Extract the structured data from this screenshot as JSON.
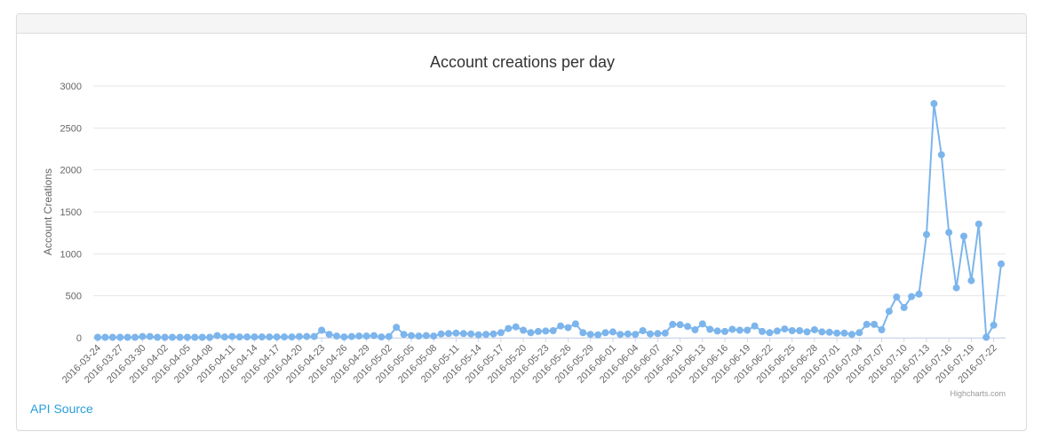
{
  "link": {
    "api_source": "API Source"
  },
  "credits": "Highcharts.com",
  "colors": {
    "series": "#7cb5ec",
    "grid": "#e6e6e6",
    "link": "#2a9fd6"
  },
  "chart_data": {
    "type": "line",
    "title": "Account creations per day",
    "xlabel": "",
    "ylabel": "Account Creations",
    "ylim": [
      0,
      3000
    ],
    "yticks": [
      0,
      500,
      1000,
      1500,
      2000,
      2500,
      3000
    ],
    "grid": true,
    "legend": "none",
    "x_start": "2016-03-24",
    "x_end": "2016-07-22",
    "x_tick_labels": [
      "2016-03-24",
      "2016-03-27",
      "2016-03-30",
      "2016-04-02",
      "2016-04-05",
      "2016-04-08",
      "2016-04-11",
      "2016-04-14",
      "2016-04-17",
      "2016-04-20",
      "2016-04-23",
      "2016-04-26",
      "2016-04-29",
      "2016-05-02",
      "2016-05-05",
      "2016-05-08",
      "2016-05-11",
      "2016-05-14",
      "2016-05-17",
      "2016-05-20",
      "2016-05-23",
      "2016-05-26",
      "2016-05-29",
      "2016-06-01",
      "2016-06-04",
      "2016-06-07",
      "2016-06-10",
      "2016-06-13",
      "2016-06-16",
      "2016-06-19",
      "2016-06-22",
      "2016-06-25",
      "2016-06-28",
      "2016-07-01",
      "2016-07-04",
      "2016-07-07",
      "2016-07-10",
      "2016-07-13",
      "2016-07-16",
      "2016-07-19",
      "2016-07-22"
    ],
    "values": [
      5,
      5,
      5,
      5,
      5,
      5,
      15,
      15,
      5,
      5,
      5,
      5,
      5,
      5,
      5,
      5,
      25,
      10,
      15,
      10,
      10,
      10,
      10,
      10,
      10,
      10,
      10,
      15,
      15,
      15,
      90,
      40,
      20,
      10,
      15,
      20,
      20,
      25,
      10,
      15,
      125,
      40,
      25,
      20,
      25,
      20,
      45,
      50,
      55,
      50,
      45,
      35,
      40,
      45,
      60,
      110,
      130,
      90,
      60,
      75,
      80,
      85,
      140,
      120,
      165,
      60,
      40,
      35,
      60,
      70,
      40,
      45,
      40,
      85,
      45,
      50,
      55,
      160,
      155,
      135,
      95,
      165,
      100,
      80,
      75,
      100,
      90,
      90,
      140,
      75,
      60,
      80,
      105,
      85,
      85,
      70,
      95,
      70,
      65,
      55,
      55,
      40,
      60,
      160,
      160,
      95,
      315,
      485,
      360,
      490,
      520,
      1230,
      2790,
      2180,
      1255,
      595,
      1210,
      680,
      1355,
      5,
      150,
      880
    ]
  }
}
